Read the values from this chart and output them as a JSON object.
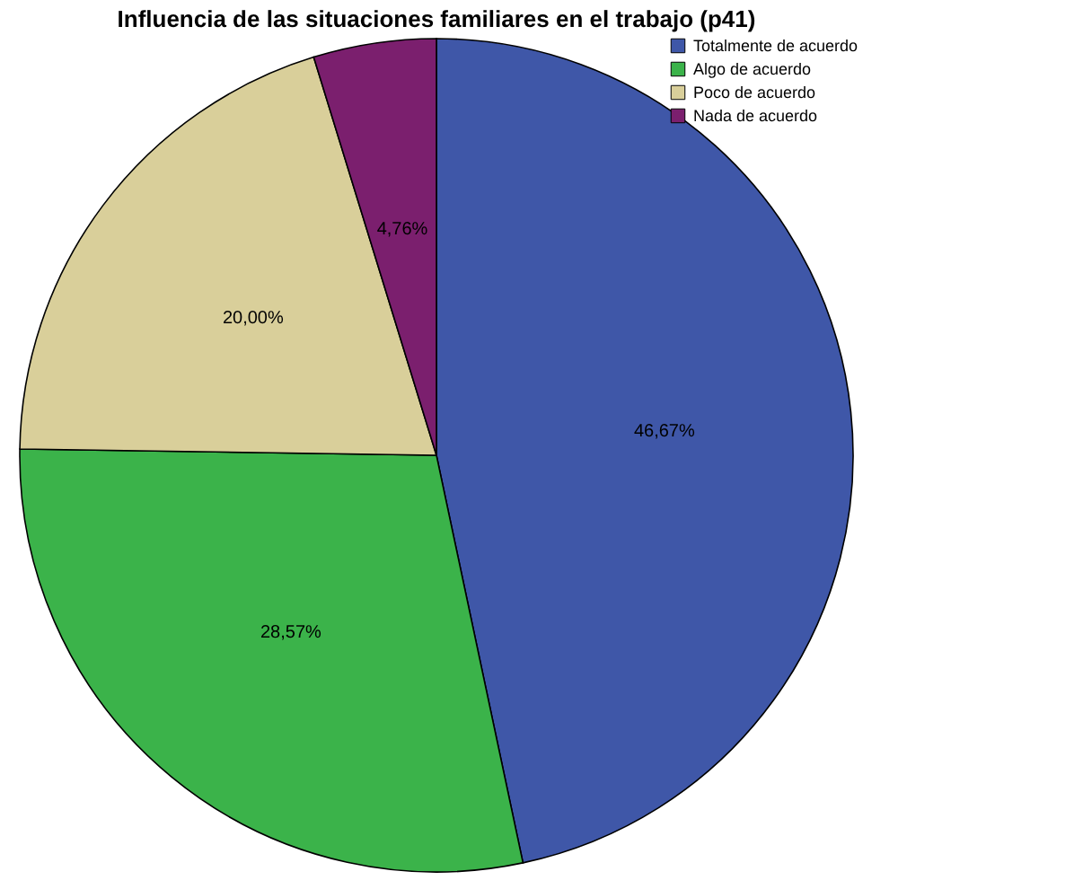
{
  "chart_data": {
    "type": "pie",
    "title": "Influencia de las situaciones familiares en el trabajo (p41)",
    "categories": [
      "Totalmente de acuerdo",
      "Algo de acuerdo",
      "Poco de acuerdo",
      "Nada de acuerdo"
    ],
    "values": [
      46.67,
      28.57,
      20.0,
      4.76
    ],
    "colors": [
      "#3f57a8",
      "#3bb34a",
      "#d9cf9a",
      "#7b1f6e"
    ],
    "value_labels": [
      "46,67%",
      "28,57%",
      "20,00%",
      "4,76%"
    ],
    "legend": "top right"
  }
}
